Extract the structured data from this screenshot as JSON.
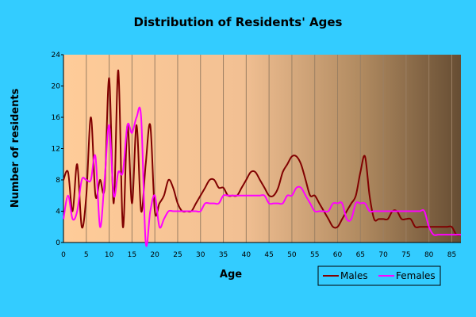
{
  "chart_data": {
    "type": "line",
    "title": "Distribution of Residents' Ages",
    "xlabel": "Age",
    "ylabel": "Number of residents",
    "xlim": [
      0,
      87
    ],
    "ylim": [
      0,
      24
    ],
    "xticks": [
      0,
      5,
      10,
      15,
      20,
      25,
      30,
      35,
      40,
      45,
      50,
      55,
      60,
      65,
      70,
      75,
      80,
      85
    ],
    "yticks": [
      0,
      4,
      8,
      12,
      16,
      20,
      24
    ],
    "grid": {
      "vertical": true,
      "horizontal": false
    },
    "legend_position": "bottom-right",
    "series": [
      {
        "name": "Males",
        "color": "#800000",
        "x": [
          0,
          1,
          2,
          3,
          4,
          5,
          6,
          7,
          8,
          9,
          10,
          11,
          12,
          13,
          14,
          15,
          16,
          17,
          18,
          19,
          20,
          21,
          22,
          23,
          24,
          25,
          26,
          27,
          28,
          29,
          30,
          31,
          32,
          33,
          34,
          35,
          36,
          37,
          38,
          39,
          40,
          41,
          42,
          43,
          44,
          45,
          46,
          47,
          48,
          49,
          50,
          51,
          52,
          53,
          54,
          55,
          56,
          57,
          58,
          59,
          60,
          61,
          62,
          63,
          64,
          65,
          66,
          67,
          68,
          69,
          70,
          71,
          72,
          73,
          74,
          75,
          76,
          77,
          78,
          79,
          80,
          81,
          82,
          83,
          84,
          85,
          86,
          87
        ],
        "values": [
          8,
          9,
          4,
          10,
          2,
          6,
          16,
          6,
          8,
          7,
          21,
          5,
          22,
          2,
          15,
          5,
          15,
          4,
          10,
          15,
          4,
          5,
          6,
          8,
          7,
          5,
          4,
          4,
          4,
          5,
          6,
          7,
          8,
          8,
          7,
          7,
          6,
          6,
          6,
          7,
          8,
          9,
          9,
          8,
          7,
          6,
          6,
          7,
          9,
          10,
          11,
          11,
          10,
          8,
          6,
          6,
          5,
          4,
          3,
          2,
          2,
          3,
          4,
          5,
          6,
          9,
          11,
          6,
          3,
          3,
          3,
          3,
          4,
          4,
          3,
          3,
          3,
          2,
          2,
          2,
          2,
          2,
          2,
          2,
          2,
          2,
          1,
          1
        ]
      },
      {
        "name": "Females",
        "color": "#ff00ff",
        "x": [
          0,
          1,
          2,
          3,
          4,
          5,
          6,
          7,
          8,
          9,
          10,
          11,
          12,
          13,
          14,
          15,
          16,
          17,
          18,
          19,
          20,
          21,
          22,
          23,
          24,
          25,
          26,
          27,
          28,
          29,
          30,
          31,
          32,
          33,
          34,
          35,
          36,
          37,
          38,
          39,
          40,
          41,
          42,
          43,
          44,
          45,
          46,
          47,
          48,
          49,
          50,
          51,
          52,
          53,
          54,
          55,
          56,
          57,
          58,
          59,
          60,
          61,
          62,
          63,
          64,
          65,
          66,
          67,
          68,
          69,
          70,
          71,
          72,
          73,
          74,
          75,
          76,
          77,
          78,
          79,
          80,
          81,
          82,
          83,
          84,
          85,
          86,
          87
        ],
        "values": [
          3,
          6,
          3,
          4,
          8,
          8,
          8,
          11,
          2,
          8,
          15,
          6,
          9,
          9,
          15,
          14,
          16,
          16,
          0,
          4,
          6,
          2,
          3,
          4,
          4,
          4,
          4,
          4,
          4,
          4,
          4,
          5,
          5,
          5,
          5,
          6,
          6,
          6,
          6,
          6,
          6,
          6,
          6,
          6,
          6,
          5,
          5,
          5,
          5,
          6,
          6,
          7,
          7,
          6,
          5,
          4,
          4,
          4,
          4,
          5,
          5,
          5,
          3,
          3,
          5,
          5,
          5,
          4,
          4,
          4,
          4,
          4,
          4,
          4,
          4,
          4,
          4,
          4,
          4,
          4,
          2,
          1,
          1,
          1,
          1,
          1,
          1,
          1
        ]
      }
    ]
  }
}
